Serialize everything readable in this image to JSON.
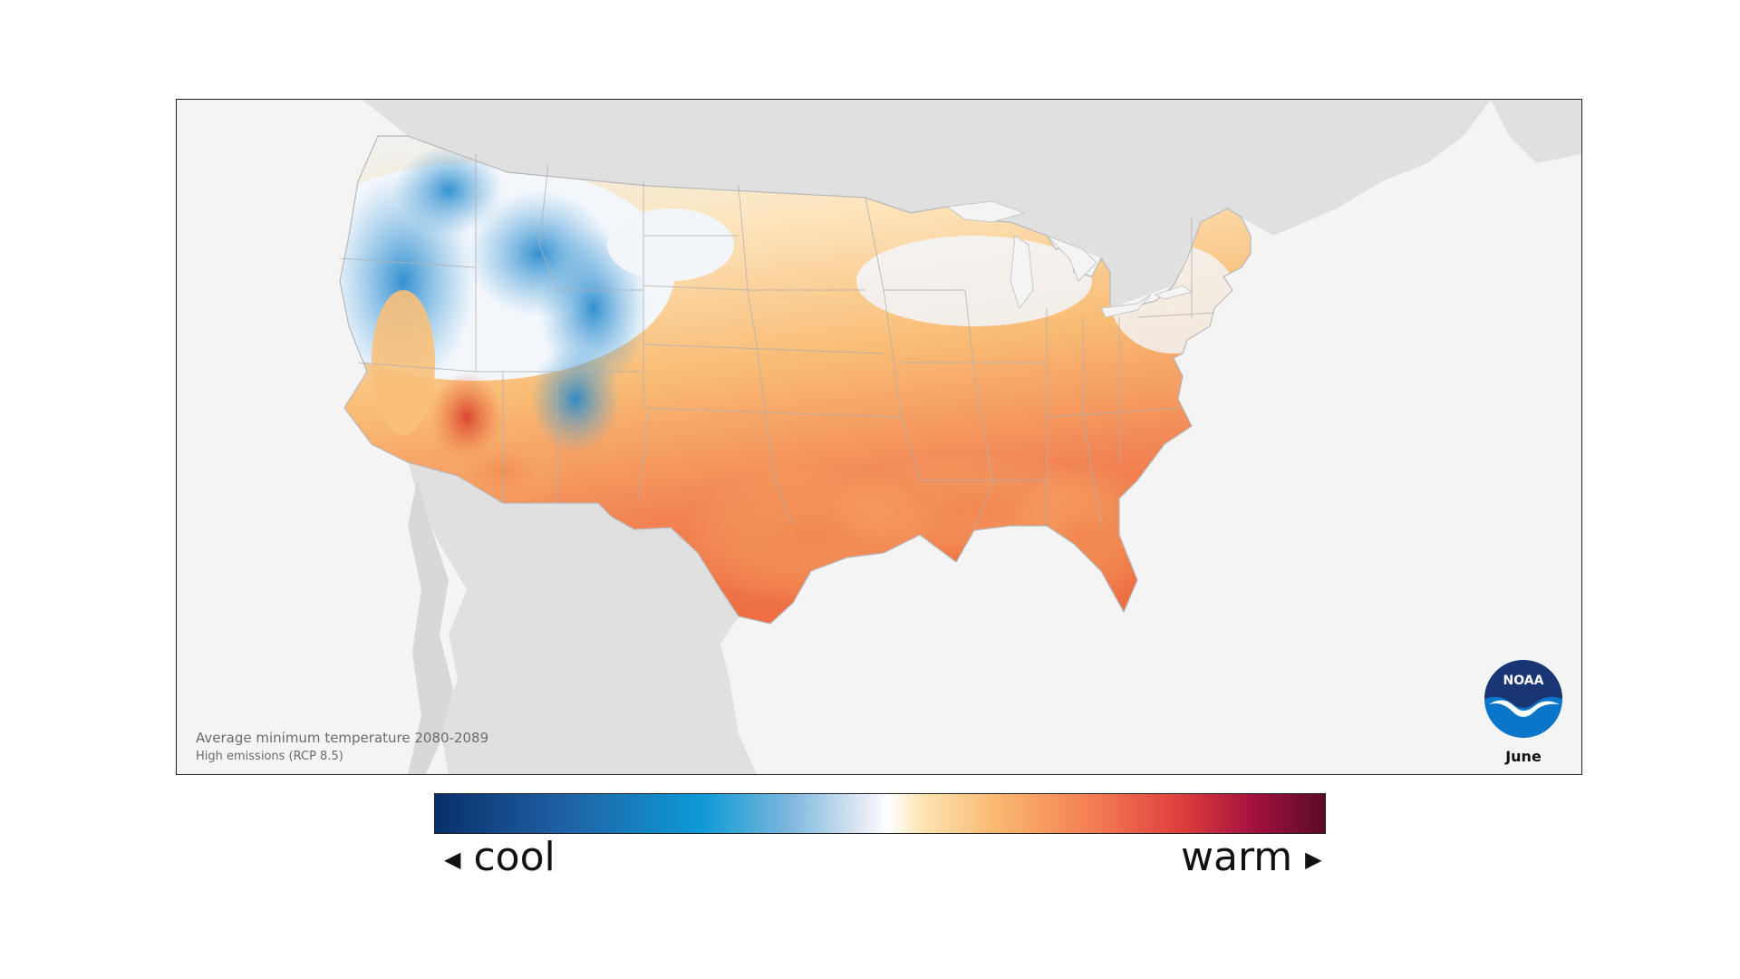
{
  "caption": {
    "title": "Average minimum temperature 2080-2089",
    "subtitle": "High emissions (RCP 8.5)"
  },
  "month": "June",
  "logo": {
    "text": "NOAA",
    "icon": "noaa-logo"
  },
  "legend": {
    "cool_label": "cool",
    "warm_label": "warm",
    "left_arrow_icon": "triangle-left-icon",
    "right_arrow_icon": "triangle-right-icon",
    "gradient_colors": [
      "#08306b",
      "#1f5fa3",
      "#0e9ad6",
      "#7fb8df",
      "#dfe9f4",
      "#ffffff",
      "#fde3b0",
      "#f9b970",
      "#f37d52",
      "#dd3d3c",
      "#a3113e",
      "#5c0a27"
    ]
  },
  "colors": {
    "land_background": "#e0e0e0",
    "water_background": "#f4f4f4",
    "cool_region": "#3d97d3",
    "neutral_region": "#f2f6fb",
    "warm_region": "#f9bf78",
    "hot_region": "#ee6f44"
  }
}
